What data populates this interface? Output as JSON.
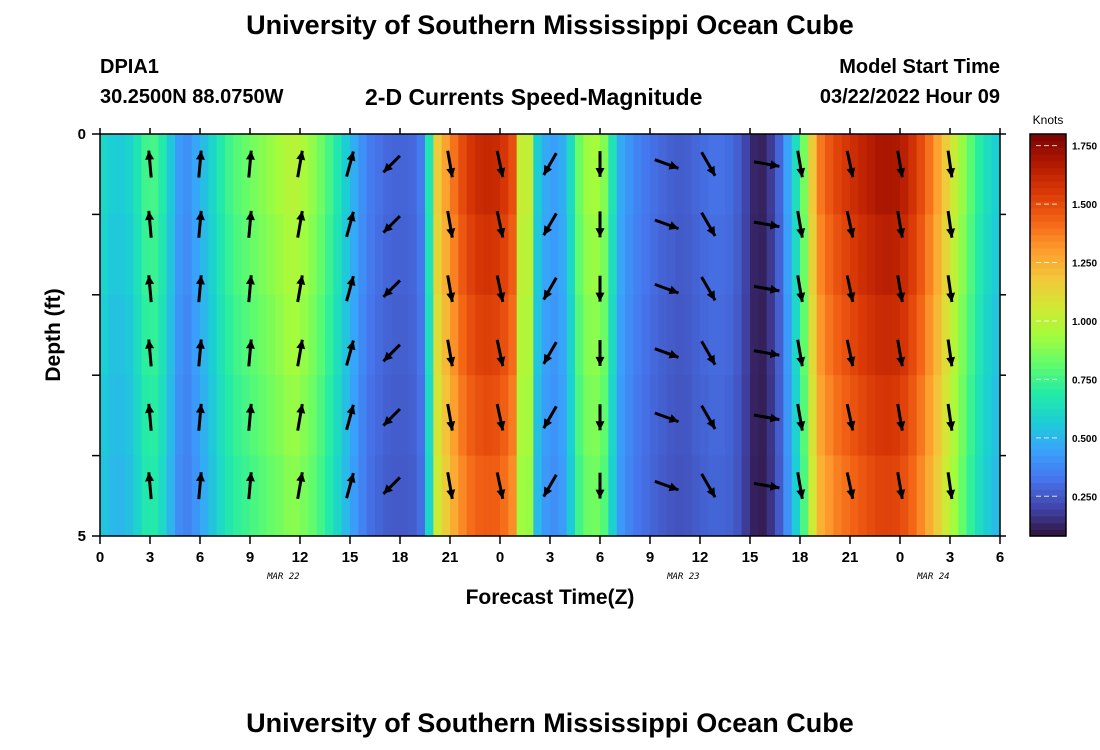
{
  "page": {
    "title": "University of Southern Mississippi Ocean Cube",
    "bottom_title": "University of Southern Mississippi Ocean Cube",
    "station_id": "DPIA1",
    "station_coords": "30.2500N  88.0750W",
    "chart_title": "2-D Currents Speed-Magnitude",
    "model_start_label": "Model Start Time",
    "model_start_value": "03/22/2022 Hour 09"
  },
  "colors": {
    "frame": "#000000",
    "arrow": "#000000",
    "colormap": [
      "#30123b",
      "#4145ab",
      "#4675ed",
      "#39a2fc",
      "#1bcfd4",
      "#24eca6",
      "#61fc6c",
      "#a4fc3b",
      "#d1e834",
      "#f3c63a",
      "#fe9b2d",
      "#f36315",
      "#d93806",
      "#b11901",
      "#7a0403"
    ]
  },
  "chart_data": {
    "type": "heatmap",
    "title": "2-D Currents Speed-Magnitude",
    "xlabel": "Forecast Time(Z)",
    "ylabel": "Depth (ft)",
    "x_hours": [
      0,
      3,
      6,
      9,
      12,
      15,
      18,
      21,
      24,
      27,
      30,
      33,
      36,
      39,
      42,
      45,
      48,
      51,
      54
    ],
    "x_tick_labels": [
      "0",
      "3",
      "6",
      "9",
      "12",
      "15",
      "18",
      "21",
      "0",
      "3",
      "6",
      "9",
      "12",
      "15",
      "18",
      "21",
      "0",
      "3",
      "6"
    ],
    "date_labels": [
      {
        "hour": 11,
        "text": "MAR 22"
      },
      {
        "hour": 35,
        "text": "MAR 23"
      },
      {
        "hour": 50,
        "text": "MAR 24"
      }
    ],
    "y_tick_labels": [
      {
        "depth": 0,
        "text": "0"
      },
      {
        "depth": 5,
        "text": "5"
      }
    ],
    "ylim": [
      0,
      5
    ],
    "xlim": [
      0,
      54
    ],
    "colorbar": {
      "unit": "Knots",
      "range": [
        0.08,
        1.8
      ],
      "ticks": [
        "0.250",
        "0.500",
        "0.750",
        "1.000",
        "1.250",
        "1.500",
        "1.750"
      ],
      "tick_values": [
        0.25,
        0.5,
        0.75,
        1.0,
        1.25,
        1.5,
        1.75
      ]
    },
    "speed_profile": [
      {
        "h": 0,
        "v": 0.62
      },
      {
        "h": 1,
        "v": 0.55
      },
      {
        "h": 2,
        "v": 0.6
      },
      {
        "h": 2.5,
        "v": 0.72
      },
      {
        "h": 3,
        "v": 0.78
      },
      {
        "h": 3.5,
        "v": 0.74
      },
      {
        "h": 4,
        "v": 0.62
      },
      {
        "h": 4.5,
        "v": 0.48
      },
      {
        "h": 5,
        "v": 0.38
      },
      {
        "h": 5.5,
        "v": 0.42
      },
      {
        "h": 6,
        "v": 0.5
      },
      {
        "h": 6.5,
        "v": 0.56
      },
      {
        "h": 7,
        "v": 0.64
      },
      {
        "h": 7.5,
        "v": 0.72
      },
      {
        "h": 8,
        "v": 0.78
      },
      {
        "h": 9,
        "v": 0.84
      },
      {
        "h": 10,
        "v": 0.9
      },
      {
        "h": 11,
        "v": 0.96
      },
      {
        "h": 11.5,
        "v": 1.0
      },
      {
        "h": 12,
        "v": 0.98
      },
      {
        "h": 13,
        "v": 0.88
      },
      {
        "h": 14,
        "v": 0.72
      },
      {
        "h": 15,
        "v": 0.52
      },
      {
        "h": 16,
        "v": 0.36
      },
      {
        "h": 17,
        "v": 0.3
      },
      {
        "h": 18,
        "v": 0.28
      },
      {
        "h": 19,
        "v": 0.3
      },
      {
        "h": 19.6,
        "v": 0.4
      },
      {
        "h": 20,
        "v": 1.1
      },
      {
        "h": 21,
        "v": 1.35
      },
      {
        "h": 22,
        "v": 1.55
      },
      {
        "h": 23,
        "v": 1.62
      },
      {
        "h": 24,
        "v": 1.6
      },
      {
        "h": 25,
        "v": 1.45
      },
      {
        "h": 25.3,
        "v": 0.95
      },
      {
        "h": 25.7,
        "v": 1.1
      },
      {
        "h": 26,
        "v": 0.62
      },
      {
        "h": 27,
        "v": 0.42
      },
      {
        "h": 28,
        "v": 0.5
      },
      {
        "h": 28.5,
        "v": 0.75
      },
      {
        "h": 29,
        "v": 0.92
      },
      {
        "h": 30,
        "v": 0.95
      },
      {
        "h": 30.5,
        "v": 0.8
      },
      {
        "h": 31,
        "v": 0.5
      },
      {
        "h": 32,
        "v": 0.38
      },
      {
        "h": 33,
        "v": 0.32
      },
      {
        "h": 34,
        "v": 0.28
      },
      {
        "h": 35,
        "v": 0.26
      },
      {
        "h": 36,
        "v": 0.3
      },
      {
        "h": 37,
        "v": 0.32
      },
      {
        "h": 38,
        "v": 0.3
      },
      {
        "h": 38.5,
        "v": 0.24
      },
      {
        "h": 39,
        "v": 0.16
      },
      {
        "h": 39.5,
        "v": 0.1
      },
      {
        "h": 40,
        "v": 0.14
      },
      {
        "h": 40.5,
        "v": 0.22
      },
      {
        "h": 41,
        "v": 0.35
      },
      {
        "h": 41.5,
        "v": 0.55
      },
      {
        "h": 42,
        "v": 0.72
      },
      {
        "h": 42.5,
        "v": 1.0
      },
      {
        "h": 43,
        "v": 1.35
      },
      {
        "h": 44,
        "v": 1.5
      },
      {
        "h": 45,
        "v": 1.58
      },
      {
        "h": 46,
        "v": 1.65
      },
      {
        "h": 47,
        "v": 1.7
      },
      {
        "h": 48,
        "v": 1.68
      },
      {
        "h": 49,
        "v": 1.55
      },
      {
        "h": 50,
        "v": 1.35
      },
      {
        "h": 51,
        "v": 1.1
      },
      {
        "h": 52,
        "v": 0.85
      },
      {
        "h": 53,
        "v": 0.65
      },
      {
        "h": 54,
        "v": 0.55
      }
    ],
    "arrow_columns": [
      {
        "h": 3,
        "dir": 355,
        "mag": 0.75
      },
      {
        "h": 6,
        "dir": 5,
        "mag": 0.75
      },
      {
        "h": 9,
        "dir": 5,
        "mag": 0.75
      },
      {
        "h": 12,
        "dir": 10,
        "mag": 0.75
      },
      {
        "h": 15,
        "dir": 15,
        "mag": 0.72
      },
      {
        "h": 17.5,
        "dir": 225,
        "mag": 0.65
      },
      {
        "h": 21,
        "dir": 170,
        "mag": 0.75
      },
      {
        "h": 24,
        "dir": 168,
        "mag": 0.75
      },
      {
        "h": 27,
        "dir": 210,
        "mag": 0.7
      },
      {
        "h": 30,
        "dir": 180,
        "mag": 0.72
      },
      {
        "h": 34,
        "dir": 110,
        "mag": 0.7
      },
      {
        "h": 36.5,
        "dir": 150,
        "mag": 0.75
      },
      {
        "h": 40,
        "dir": 100,
        "mag": 0.72
      },
      {
        "h": 42,
        "dir": 170,
        "mag": 0.75
      },
      {
        "h": 45,
        "dir": 168,
        "mag": 0.75
      },
      {
        "h": 48,
        "dir": 170,
        "mag": 0.75
      },
      {
        "h": 51,
        "dir": 172,
        "mag": 0.75
      }
    ]
  }
}
